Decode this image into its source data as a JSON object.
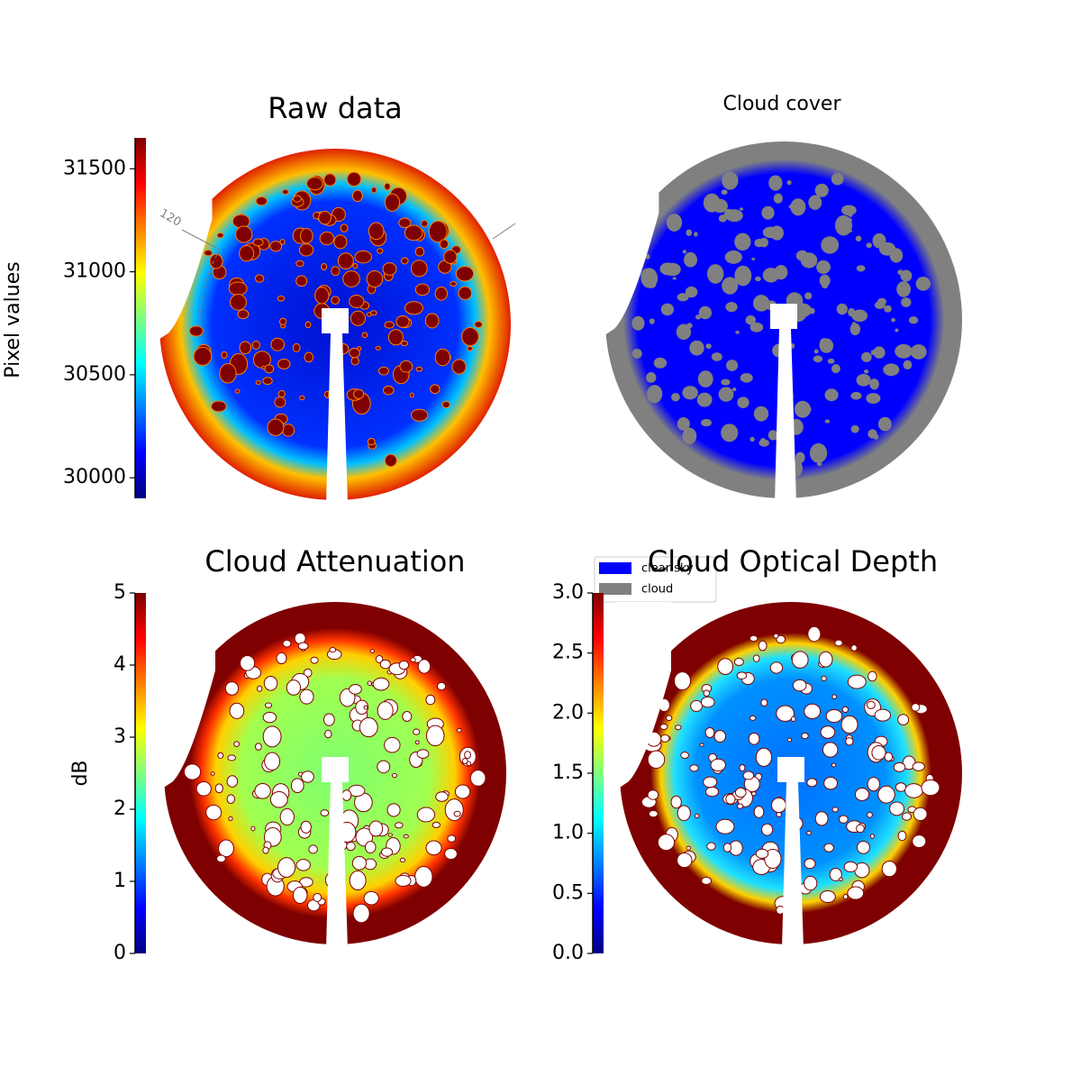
{
  "chart_data": [
    {
      "type": "image",
      "title": "Raw data",
      "colormap": "jet",
      "clabel": "Pixel values",
      "clim": [
        29900,
        31650
      ],
      "cticks": [
        30000,
        30500,
        31000,
        31500
      ],
      "annotations": [
        "120"
      ]
    },
    {
      "type": "image",
      "title": "Cloud cover",
      "series": [
        {
          "name": "clear sky",
          "color": "#0000ff"
        },
        {
          "name": "cloud",
          "color": "#808080"
        }
      ]
    },
    {
      "type": "image",
      "title": "Cloud Attenuation",
      "colormap": "jet",
      "clabel": "dB",
      "clim": [
        0,
        5
      ],
      "cticks": [
        0,
        1,
        2,
        3,
        4,
        5
      ]
    },
    {
      "type": "image",
      "title": "Cloud Optical Depth",
      "colormap": "jet",
      "clim": [
        0,
        3
      ],
      "cticks": [
        {
          "value": 0,
          "label": "0.0"
        },
        0.5,
        {
          "value": 1,
          "label": "1.0"
        },
        1.5,
        {
          "value": 2,
          "label": "2.0"
        },
        2.5,
        {
          "value": 3,
          "label": "3.0"
        }
      ]
    }
  ]
}
